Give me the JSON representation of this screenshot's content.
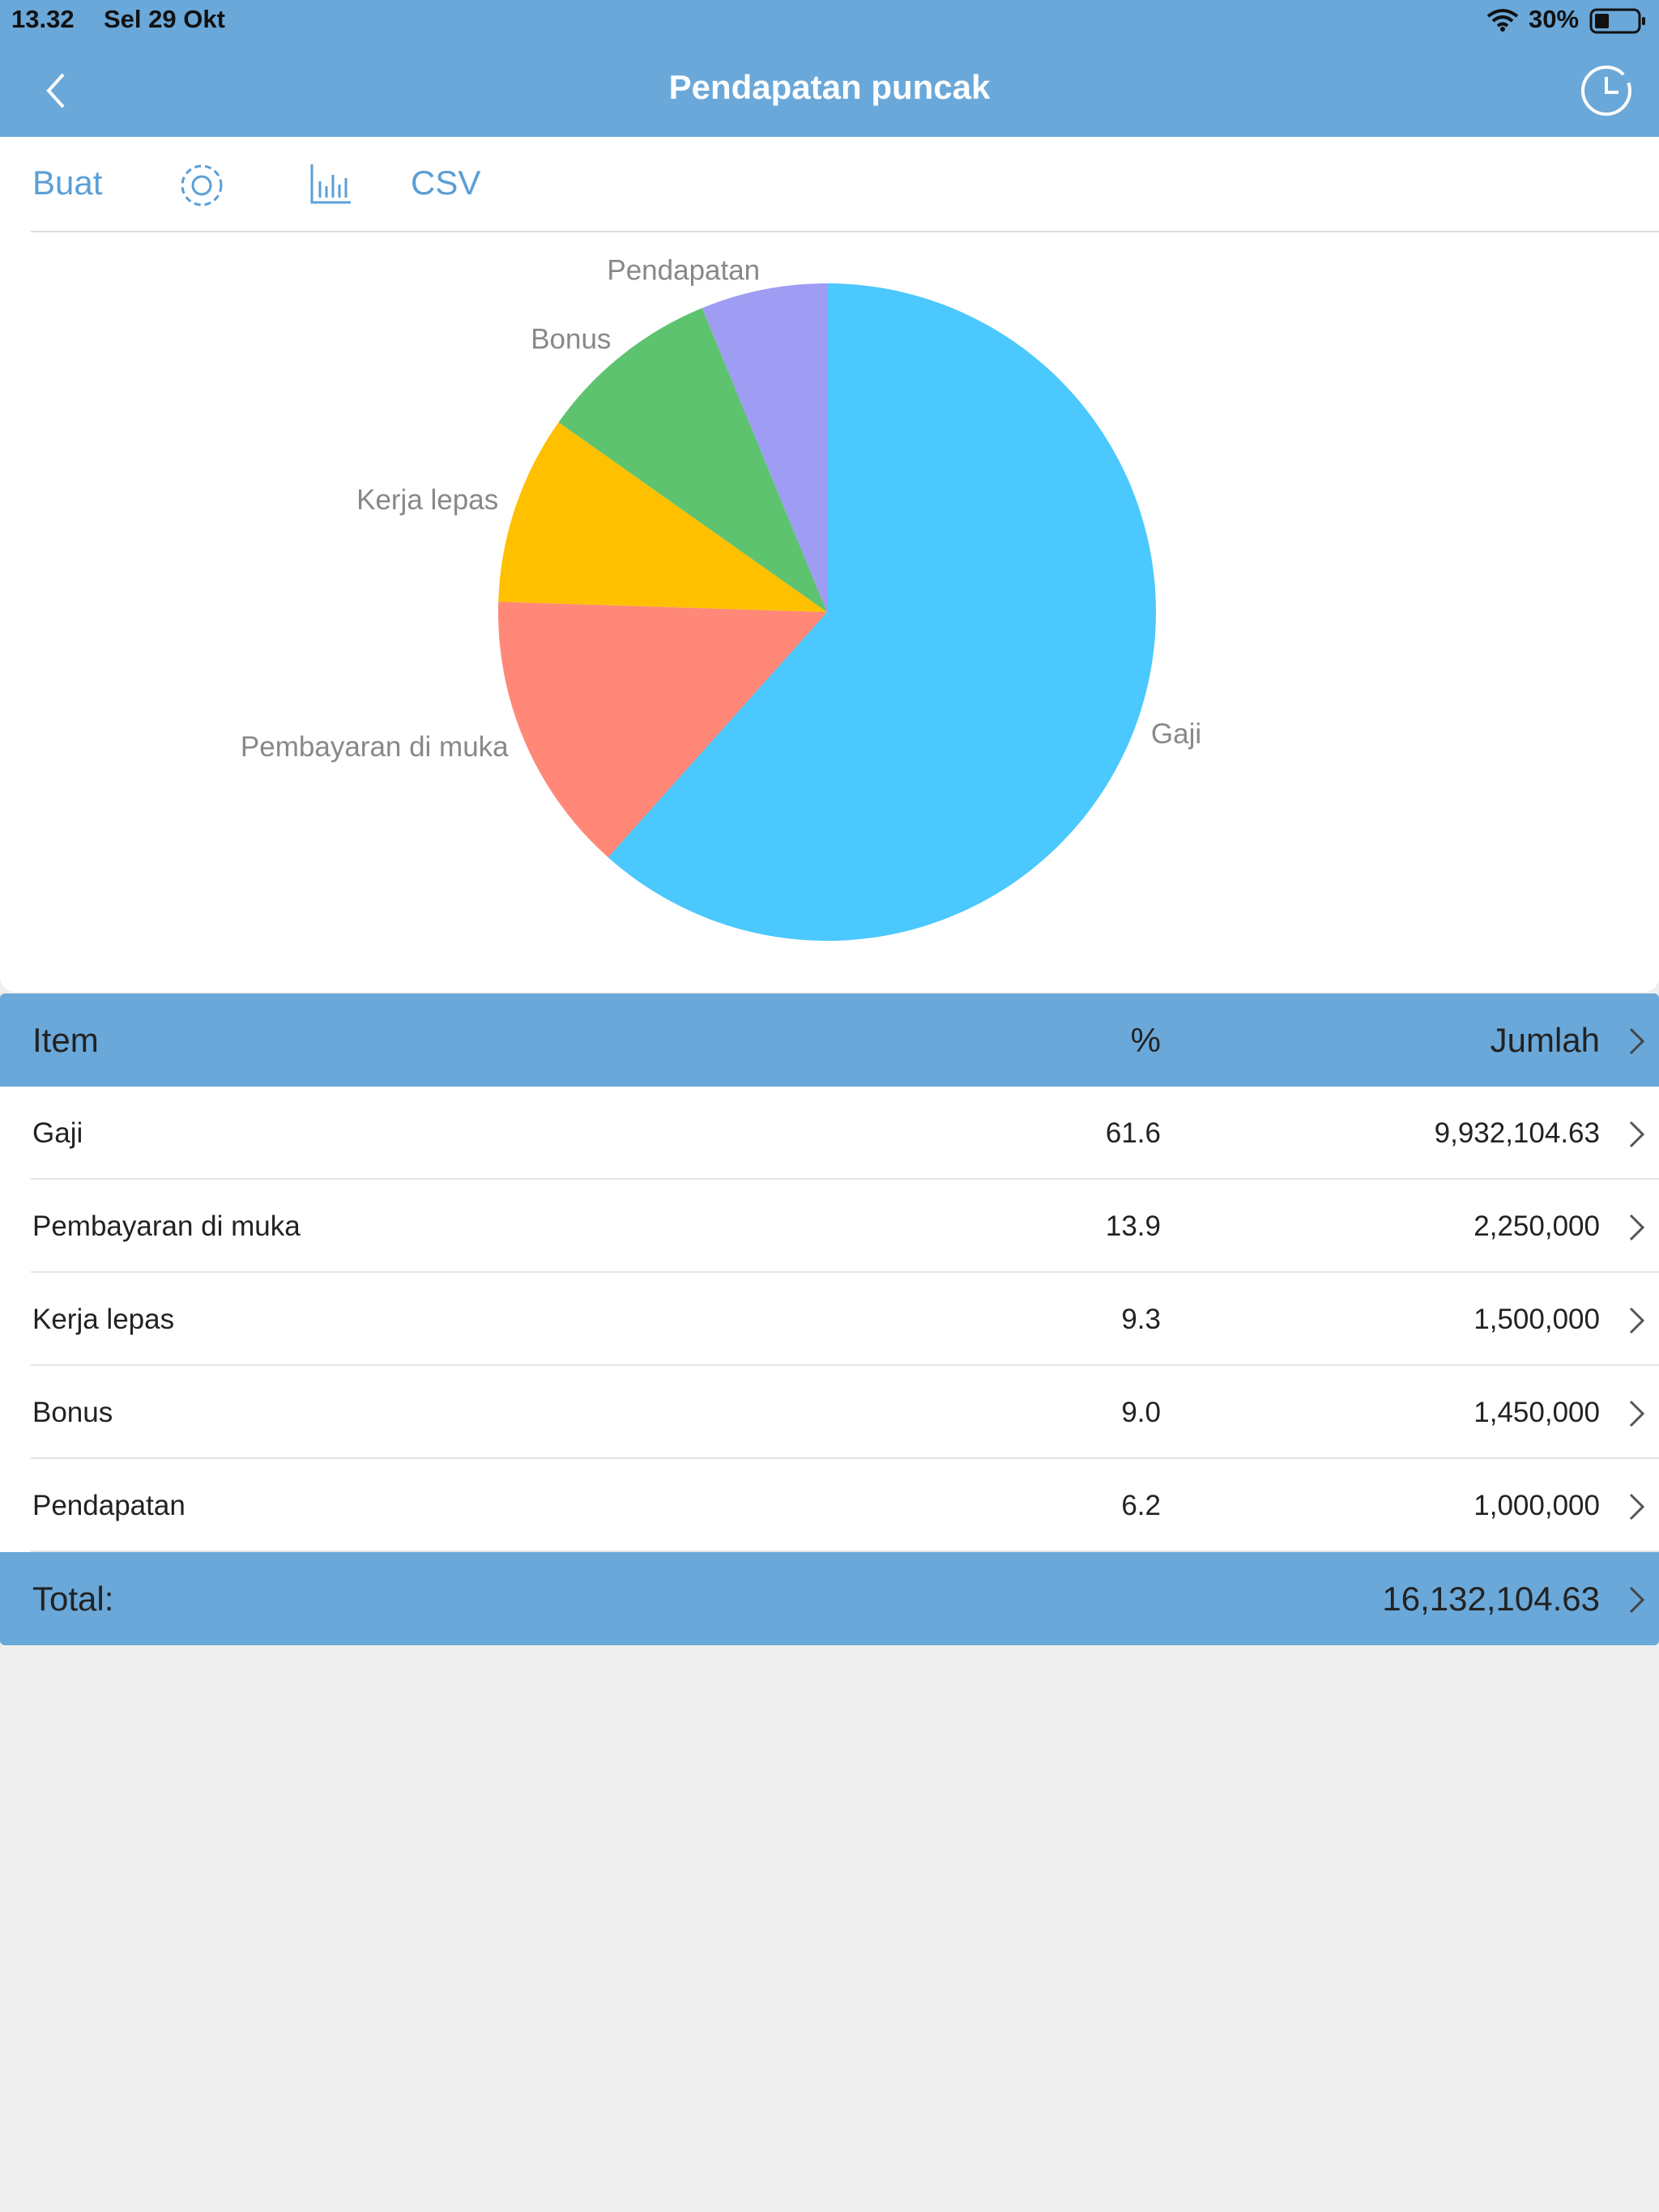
{
  "status_bar": {
    "time": "13.32",
    "date": "Sel 29 Okt",
    "battery": "30%"
  },
  "header": {
    "title": "Pendapatan puncak"
  },
  "toolbar": {
    "create": "Buat",
    "csv": "CSV"
  },
  "chart_data": {
    "type": "pie",
    "categories": [
      "Gaji",
      "Pembayaran di muka",
      "Kerja lepas",
      "Bonus",
      "Pendapatan"
    ],
    "values": [
      61.6,
      13.9,
      9.3,
      9.0,
      6.2
    ],
    "colors": [
      "#4bc8fd",
      "#ff8878",
      "#ffc000",
      "#5dc36f",
      "#9f9cf3"
    ]
  },
  "table": {
    "columns": [
      "Item",
      "%",
      "Jumlah"
    ],
    "rows": [
      [
        "Gaji",
        "61.6",
        "9,932,104.63"
      ],
      [
        "Pembayaran di muka",
        "13.9",
        "2,250,000"
      ],
      [
        "Kerja lepas",
        "9.3",
        "1,500,000"
      ],
      [
        "Bonus",
        "9.0",
        "1,450,000"
      ],
      [
        "Pendapatan",
        "6.2",
        "1,000,000"
      ]
    ],
    "total": {
      "label": "Total:",
      "amount": "16,132,104.63"
    }
  }
}
